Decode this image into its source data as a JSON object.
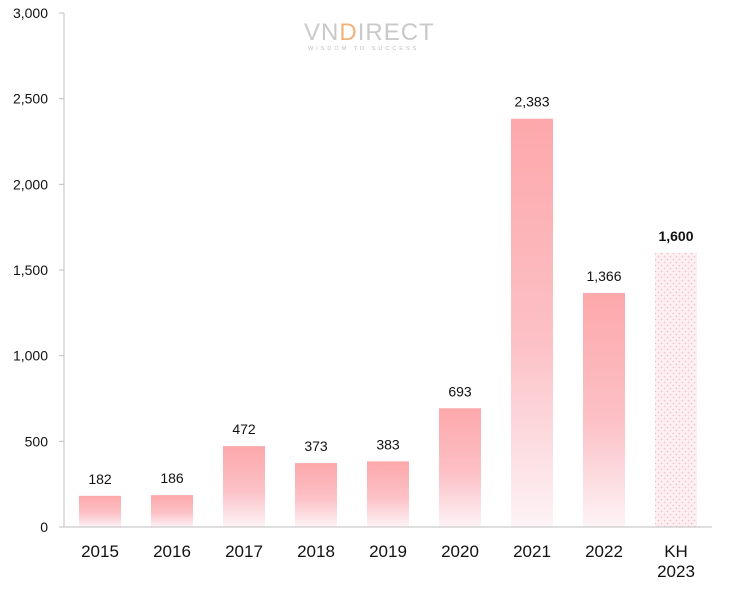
{
  "brand": {
    "name_prefix": "VN",
    "name_accent": "D",
    "name_suffix": "IRECT",
    "tagline": "WISDOM TO SUCCESS",
    "color_text": "#c9c9c9",
    "color_accent": "#f3b27a"
  },
  "chart_data": {
    "type": "bar",
    "title": "",
    "xlabel": "",
    "ylabel": "",
    "categories": [
      [
        "2015"
      ],
      [
        "2016"
      ],
      [
        "2017"
      ],
      [
        "2018"
      ],
      [
        "2019"
      ],
      [
        "2020"
      ],
      [
        "2021"
      ],
      [
        "2022"
      ],
      [
        "KH",
        "2023"
      ]
    ],
    "values": [
      182,
      186,
      472,
      373,
      383,
      693,
      2383,
      1366,
      1600
    ],
    "value_labels": [
      "182",
      "186",
      "472",
      "373",
      "383",
      "693",
      "2,383",
      "1,366",
      "1,600"
    ],
    "plan_index": 8,
    "ylim": [
      0,
      3000
    ],
    "yticks": [
      0,
      500,
      1000,
      1500,
      2000,
      2500,
      3000
    ],
    "ytick_labels": [
      "0",
      "500",
      "1,000",
      "1,500",
      "2,000",
      "2,500",
      "3,000"
    ],
    "grid": false,
    "legend": "none",
    "colors": {
      "bar_top": "#fda8ab",
      "bar_bottom": "#fdf3f6",
      "plan_fill": "#fdf0f2",
      "plan_dots": "#f7b7bf",
      "axis": "#bfbfbf"
    }
  }
}
